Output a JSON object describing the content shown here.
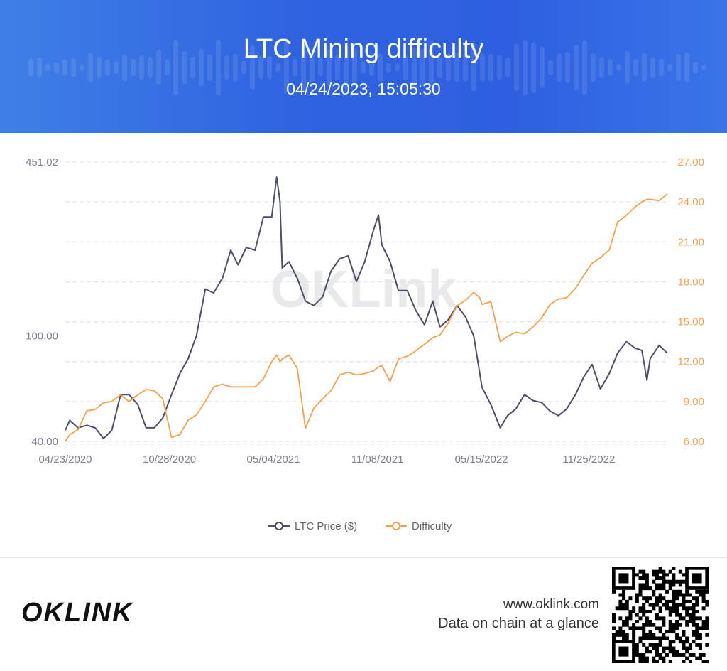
{
  "header": {
    "title": "LTC Mining difficulty",
    "timestamp": "04/24/2023, 15:05:30"
  },
  "footer": {
    "site": "www.oklink.com",
    "tagline": "Data on chain at a glance",
    "logo_text": "OKLINK"
  },
  "watermark": "OKLink",
  "colors": {
    "price": "#4a5068",
    "difficulty": "#f7a04b",
    "header": "#2f63e0"
  },
  "chart_data": {
    "type": "line",
    "title": "LTC Mining difficulty",
    "x_ticks": [
      "04/23/2020",
      "10/28/2020",
      "05/04/2021",
      "11/08/2021",
      "05/15/2022",
      "11/25/2022"
    ],
    "x_range": [
      "04/23/2020",
      "04/16/2023"
    ],
    "y_left": {
      "scale": "log",
      "range": [
        40,
        451.02
      ],
      "tick_labels": [
        "451.02",
        "100.00",
        "40.00"
      ],
      "ticks": [
        451.02,
        100,
        40
      ]
    },
    "y_right": {
      "scale": "linear",
      "range": [
        6,
        27
      ],
      "tick_labels": [
        "27.00",
        "24.00",
        "21.00",
        "18.00",
        "15.00",
        "12.00",
        "9.00",
        "6.00"
      ],
      "ticks": [
        27,
        24,
        21,
        18,
        15,
        12,
        9,
        6
      ]
    },
    "grid": true,
    "legend_position": "bottom",
    "x": [
      "04/23/2020",
      "05/01/2020",
      "05/16/2020",
      "06/01/2020",
      "06/16/2020",
      "07/01/2020",
      "07/16/2020",
      "08/01/2020",
      "08/16/2020",
      "09/01/2020",
      "09/16/2020",
      "10/01/2020",
      "10/16/2020",
      "11/01/2020",
      "11/16/2020",
      "12/01/2020",
      "12/16/2020",
      "01/01/2021",
      "01/16/2021",
      "02/01/2021",
      "02/16/2021",
      "03/01/2021",
      "03/16/2021",
      "04/01/2021",
      "04/16/2021",
      "05/01/2021",
      "05/10/2021",
      "05/16/2021",
      "05/20/2021",
      "06/01/2021",
      "06/16/2021",
      "07/01/2021",
      "07/16/2021",
      "08/01/2021",
      "08/16/2021",
      "09/01/2021",
      "09/16/2021",
      "10/01/2021",
      "10/16/2021",
      "11/01/2021",
      "11/10/2021",
      "11/16/2021",
      "12/01/2021",
      "12/16/2021",
      "01/01/2022",
      "01/16/2022",
      "02/01/2022",
      "02/16/2022",
      "03/01/2022",
      "03/16/2022",
      "04/01/2022",
      "04/16/2022",
      "05/01/2022",
      "05/12/2022",
      "05/16/2022",
      "06/01/2022",
      "06/18/2022",
      "07/01/2022",
      "07/16/2022",
      "08/01/2022",
      "08/16/2022",
      "09/01/2022",
      "09/16/2022",
      "10/01/2022",
      "10/16/2022",
      "11/01/2022",
      "11/16/2022",
      "12/01/2022",
      "12/16/2022",
      "01/01/2023",
      "01/16/2023",
      "02/01/2023",
      "02/16/2023",
      "03/01/2023",
      "03/10/2023",
      "03/16/2023",
      "04/01/2023",
      "04/16/2023"
    ],
    "series": [
      {
        "name": "LTC Price ($)",
        "axis": "left",
        "values": [
          44,
          48,
          45,
          46,
          45,
          41,
          44,
          60,
          60,
          55,
          45,
          45,
          49,
          60,
          72,
          82,
          100,
          150,
          145,
          165,
          210,
          185,
          215,
          210,
          280,
          280,
          396,
          320,
          180,
          190,
          165,
          135,
          130,
          140,
          175,
          195,
          200,
          160,
          190,
          250,
          285,
          220,
          190,
          148,
          148,
          125,
          110,
          135,
          108,
          115,
          130,
          118,
          100,
          72,
          64,
          55,
          45,
          50,
          53,
          60,
          57,
          56,
          52,
          50,
          53,
          60,
          70,
          78,
          63,
          72,
          86,
          95,
          90,
          88,
          68,
          82,
          92,
          86
        ]
      },
      {
        "name": "Difficulty",
        "axis": "right",
        "values": [
          6.0,
          6.5,
          6.9,
          8.3,
          8.4,
          8.9,
          9.0,
          9.5,
          9.0,
          9.5,
          9.9,
          9.8,
          9.2,
          6.3,
          6.5,
          7.6,
          8.0,
          9.0,
          10.1,
          10.3,
          10.1,
          10.1,
          10.1,
          10.1,
          10.7,
          12.0,
          12.5,
          12.0,
          12.2,
          12.5,
          11.5,
          7.0,
          8.5,
          9.2,
          9.8,
          11.0,
          11.2,
          11.0,
          11.1,
          11.3,
          11.6,
          11.7,
          10.5,
          12.2,
          12.4,
          12.8,
          13.3,
          13.8,
          14.0,
          14.9,
          16.2,
          16.6,
          17.2,
          16.8,
          16.3,
          16.5,
          13.5,
          13.9,
          14.2,
          14.1,
          14.6,
          15.3,
          16.3,
          16.7,
          16.8,
          17.5,
          18.5,
          19.4,
          19.8,
          20.4,
          22.5,
          23.0,
          23.6,
          24.0,
          24.2,
          24.2,
          24.1,
          24.6
        ]
      }
    ]
  }
}
